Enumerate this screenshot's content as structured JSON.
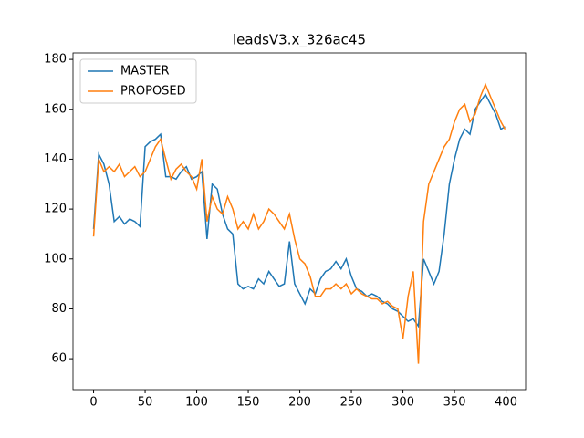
{
  "chart_data": {
    "type": "line",
    "title": "leadsV3.x_326ac45",
    "x": [
      0,
      5,
      10,
      15,
      20,
      25,
      30,
      35,
      40,
      45,
      50,
      55,
      60,
      65,
      70,
      75,
      80,
      85,
      90,
      95,
      100,
      105,
      110,
      115,
      120,
      125,
      130,
      135,
      140,
      145,
      150,
      155,
      160,
      165,
      170,
      175,
      180,
      185,
      190,
      195,
      200,
      205,
      210,
      215,
      220,
      225,
      230,
      235,
      240,
      245,
      250,
      255,
      260,
      265,
      270,
      275,
      280,
      285,
      290,
      295,
      300,
      305,
      310,
      315,
      320,
      325,
      330,
      335,
      340,
      345,
      350,
      355,
      360,
      365,
      370,
      375,
      380,
      385,
      390,
      395,
      399
    ],
    "series": [
      {
        "name": "MASTER",
        "color": "#1f77b4",
        "values": [
          112,
          142,
          138,
          130,
          115,
          117,
          114,
          116,
          115,
          113,
          145,
          147,
          148,
          150,
          133,
          133,
          132,
          135,
          137,
          132,
          133,
          135,
          108,
          130,
          128,
          118,
          112,
          110,
          90,
          88,
          89,
          88,
          92,
          90,
          95,
          92,
          89,
          90,
          107,
          90,
          86,
          82,
          88,
          86,
          92,
          95,
          96,
          99,
          96,
          100,
          93,
          88,
          87,
          85,
          86,
          85,
          83,
          82,
          80,
          79,
          77,
          75,
          76,
          73,
          100,
          95,
          90,
          95,
          110,
          130,
          140,
          148,
          152,
          150,
          160,
          163,
          166,
          162,
          158,
          152,
          153
        ]
      },
      {
        "name": "PROPOSED",
        "color": "#ff7f0e",
        "values": [
          109,
          140,
          135,
          137,
          135,
          138,
          133,
          135,
          137,
          133,
          135,
          140,
          145,
          148,
          140,
          132,
          136,
          138,
          135,
          133,
          128,
          140,
          115,
          125,
          120,
          118,
          125,
          120,
          112,
          115,
          112,
          118,
          112,
          115,
          120,
          118,
          115,
          112,
          118,
          108,
          100,
          98,
          93,
          85,
          85,
          88,
          88,
          90,
          88,
          90,
          86,
          88,
          86,
          85,
          84,
          84,
          82,
          83,
          81,
          80,
          68,
          85,
          95,
          58,
          115,
          130,
          135,
          140,
          145,
          148,
          155,
          160,
          162,
          155,
          158,
          165,
          170,
          165,
          160,
          155,
          152
        ]
      }
    ],
    "xlim": [
      -19.95,
      418.95
    ],
    "xticks": [
      0,
      50,
      100,
      150,
      200,
      250,
      300,
      350,
      400
    ],
    "ylim": [
      47.6,
      182.6
    ],
    "yticks": [
      60,
      80,
      100,
      120,
      140,
      160,
      180
    ],
    "legend": "upper left"
  }
}
